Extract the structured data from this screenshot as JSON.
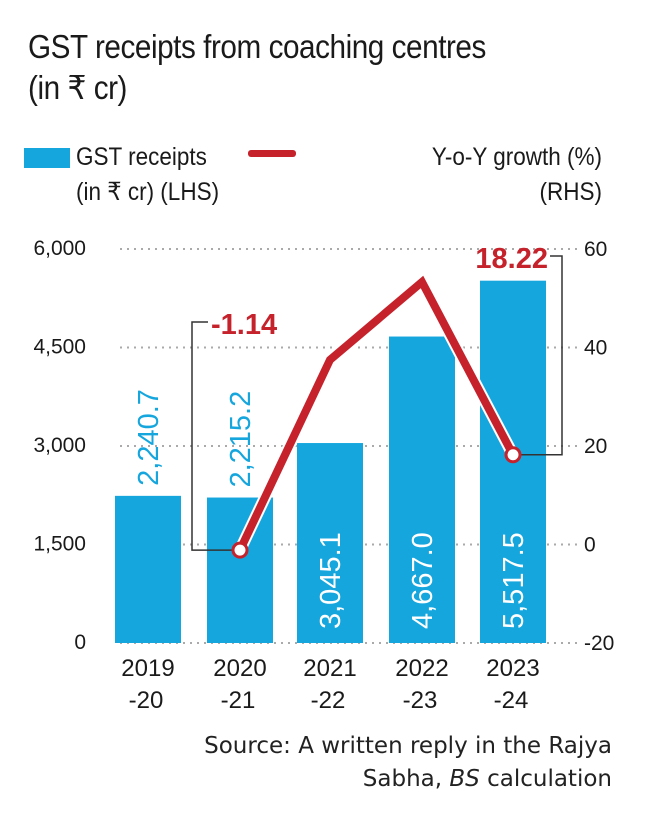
{
  "title_line1": "GST receipts from coaching centres",
  "title_line2": "(in ₹ cr)",
  "legend": {
    "bars_label_line1": "GST receipts",
    "bars_label_line2": "(in ₹ cr) (LHS)",
    "line_label_line1": "Y-o-Y growth (%)",
    "line_label_line2": "(RHS)"
  },
  "source_line1": "Source: A written reply in the Rajya",
  "source_line2_prefix": "Sabha, ",
  "source_line2_italic": "BS",
  "source_line2_suffix": " calculation",
  "colors": {
    "bar": "#16a6de",
    "line": "#c5222b",
    "bar_label": "#ffffff",
    "grid": "#aaaaaa"
  },
  "chart_data": {
    "type": "bar+line",
    "title": "GST receipts from coaching centres (in ₹ cr)",
    "categories": [
      "2019-20",
      "2020-21",
      "2021-22",
      "2022-23",
      "2023-24"
    ],
    "category_labels": [
      [
        "2019",
        "-20"
      ],
      [
        "2020",
        "-21"
      ],
      [
        "2021",
        "-22"
      ],
      [
        "2022",
        "-23"
      ],
      [
        "2023",
        "-24"
      ]
    ],
    "series": [
      {
        "name": "GST receipts (in ₹ cr) (LHS)",
        "type": "bar",
        "axis": "left",
        "values": [
          2240.7,
          2215.2,
          3045.1,
          4667.0,
          5517.5
        ],
        "labels": [
          "2,240.7",
          "2,215.2",
          "3,045.1",
          "4,667.0",
          "5,517.5"
        ]
      },
      {
        "name": "Y-o-Y growth (%) (RHS)",
        "type": "line",
        "axis": "right",
        "values": [
          null,
          -1.14,
          37.5,
          53.3,
          18.22
        ],
        "callouts": [
          {
            "index": 1,
            "label": "-1.14"
          },
          {
            "index": 4,
            "label": "18.22"
          }
        ]
      }
    ],
    "left_axis": {
      "ylim": [
        0,
        6000
      ],
      "ticks": [
        0,
        1500,
        3000,
        4500,
        6000
      ],
      "tick_labels": [
        "0",
        "1,500",
        "3,000",
        "4,500",
        "6,000"
      ]
    },
    "right_axis": {
      "ylim": [
        -20,
        60
      ],
      "ticks": [
        -20,
        0,
        20,
        40,
        60
      ],
      "tick_labels": [
        "-20",
        "0",
        "20",
        "40",
        "60"
      ]
    },
    "grid": true,
    "legend_position": "top"
  }
}
